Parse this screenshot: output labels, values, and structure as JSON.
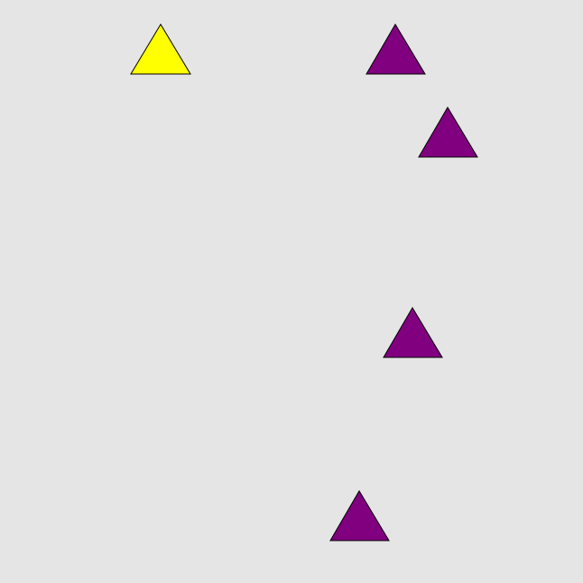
{
  "background_color": "#e5e5e5",
  "stroke_color": "#000000",
  "shapes": [
    {
      "name": "yellow-triangle",
      "type": "triangle",
      "fill": "#ffff00"
    },
    {
      "name": "purple-triangle-1",
      "type": "triangle",
      "fill": "#800080"
    },
    {
      "name": "purple-triangle-2",
      "type": "triangle",
      "fill": "#800080"
    },
    {
      "name": "purple-triangle-3",
      "type": "triangle",
      "fill": "#800080"
    },
    {
      "name": "purple-triangle-4",
      "type": "triangle",
      "fill": "#800080"
    }
  ]
}
